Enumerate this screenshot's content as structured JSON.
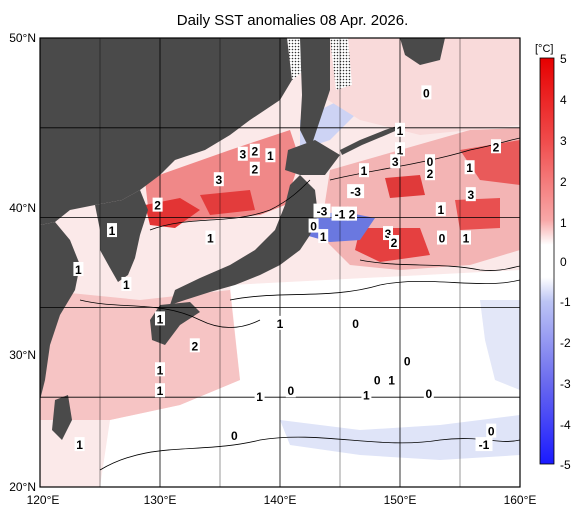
{
  "title": "Daily SST anomalies 08 Apr. 2026.",
  "map": {
    "lon_range": [
      120,
      160
    ],
    "lat_range": [
      20,
      50
    ],
    "x_ticks": [
      "120°E",
      "130°E",
      "140°E",
      "150°E",
      "160°E"
    ],
    "y_ticks": [
      "50°N",
      "40°N",
      "30°N",
      "20°N"
    ],
    "land_color": "#4a4a4a",
    "grid": true
  },
  "colorbar": {
    "unit": "[°C]",
    "ticks": [
      "5",
      "4",
      "3",
      "2",
      "1",
      "0",
      "-1",
      "-2",
      "-3",
      "-4",
      "-5"
    ],
    "max_color": "#e60000",
    "min_color": "#1a1aff",
    "zero_color": "#ffffff"
  },
  "contour_labels": [
    {
      "text": "0",
      "lon": 152.2,
      "lat": 46.3
    },
    {
      "text": "1",
      "lon": 150.0,
      "lat": 43.8
    },
    {
      "text": "1",
      "lon": 150.0,
      "lat": 42.5
    },
    {
      "text": "3",
      "lon": 149.6,
      "lat": 41.7
    },
    {
      "text": "1",
      "lon": 147.0,
      "lat": 41.1
    },
    {
      "text": "0",
      "lon": 152.5,
      "lat": 41.7
    },
    {
      "text": "2",
      "lon": 152.5,
      "lat": 40.9
    },
    {
      "text": "2",
      "lon": 158.0,
      "lat": 42.7
    },
    {
      "text": "1",
      "lon": 155.8,
      "lat": 41.3
    },
    {
      "text": "3",
      "lon": 155.9,
      "lat": 39.5
    },
    {
      "text": "1",
      "lon": 153.4,
      "lat": 38.5
    },
    {
      "text": "0",
      "lon": 153.5,
      "lat": 36.6
    },
    {
      "text": "1",
      "lon": 155.5,
      "lat": 36.6
    },
    {
      "text": "-3",
      "lon": 146.3,
      "lat": 39.7
    },
    {
      "text": "-3",
      "lon": 143.5,
      "lat": 38.4
    },
    {
      "text": "-1",
      "lon": 145.0,
      "lat": 38.2
    },
    {
      "text": "2",
      "lon": 146.0,
      "lat": 38.2
    },
    {
      "text": "0",
      "lon": 142.8,
      "lat": 37.4
    },
    {
      "text": "1",
      "lon": 143.6,
      "lat": 36.7
    },
    {
      "text": "3",
      "lon": 149.0,
      "lat": 36.9
    },
    {
      "text": "2",
      "lon": 149.5,
      "lat": 36.3
    },
    {
      "text": "1",
      "lon": 139.2,
      "lat": 42.1
    },
    {
      "text": "3",
      "lon": 136.9,
      "lat": 42.2
    },
    {
      "text": "2",
      "lon": 137.9,
      "lat": 42.4
    },
    {
      "text": "2",
      "lon": 137.9,
      "lat": 41.2
    },
    {
      "text": "3",
      "lon": 134.9,
      "lat": 40.5
    },
    {
      "text": "2",
      "lon": 129.8,
      "lat": 38.8
    },
    {
      "text": "1",
      "lon": 126.0,
      "lat": 37.1
    },
    {
      "text": "1",
      "lon": 134.2,
      "lat": 36.6
    },
    {
      "text": "1",
      "lon": 123.2,
      "lat": 34.5
    },
    {
      "text": "1",
      "lon": 127.2,
      "lat": 33.5
    },
    {
      "text": "1",
      "lon": 130.0,
      "lat": 31.2
    },
    {
      "text": "2",
      "lon": 132.9,
      "lat": 29.4
    },
    {
      "text": "1",
      "lon": 140.0,
      "lat": 30.9
    },
    {
      "text": "0",
      "lon": 146.3,
      "lat": 30.9
    },
    {
      "text": "0",
      "lon": 150.6,
      "lat": 28.4
    },
    {
      "text": "1",
      "lon": 149.3,
      "lat": 27.1
    },
    {
      "text": "0",
      "lon": 148.1,
      "lat": 27.1
    },
    {
      "text": "1",
      "lon": 130.0,
      "lat": 27.8
    },
    {
      "text": "1",
      "lon": 130.0,
      "lat": 26.4
    },
    {
      "text": "1",
      "lon": 138.3,
      "lat": 26.0
    },
    {
      "text": "0",
      "lon": 140.9,
      "lat": 26.4
    },
    {
      "text": "1",
      "lon": 147.2,
      "lat": 26.1
    },
    {
      "text": "0",
      "lon": 152.4,
      "lat": 26.2
    },
    {
      "text": "0",
      "lon": 136.2,
      "lat": 23.4
    },
    {
      "text": "1",
      "lon": 123.3,
      "lat": 22.8
    },
    {
      "text": "0",
      "lon": 157.6,
      "lat": 23.7
    },
    {
      "text": "-1",
      "lon": 157.0,
      "lat": 22.8
    }
  ]
}
